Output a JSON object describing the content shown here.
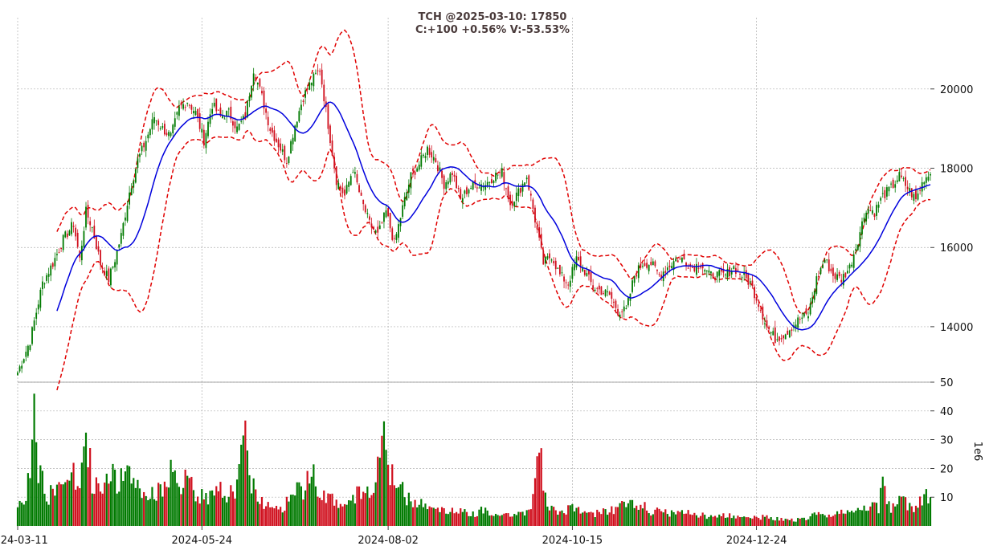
{
  "chart_data": {
    "type": "candlestick",
    "title_line1": "TCH @2025-03-10: 17850",
    "title_line2": "C:+100 +0.56% V:-53.53%",
    "date_ticks": [
      "2024-03-11",
      "2024-05-24",
      "2024-08-02",
      "2024-10-15",
      "2024-12-24"
    ],
    "price_axis": {
      "ticks": [
        14000,
        16000,
        18000,
        20000
      ],
      "range": [
        12600,
        21800
      ]
    },
    "volume_axis": {
      "label": "1e6",
      "ticks": [
        10,
        20,
        30,
        40,
        50
      ],
      "range": [
        0,
        50
      ]
    },
    "overlays": [
      "sma20",
      "bollinger_upper",
      "bollinger_lower"
    ],
    "colors": {
      "up": "#007a00",
      "down": "#d0101e",
      "ma": "#0000dd",
      "bands": "#e00000",
      "grid": "#b0b0b0"
    },
    "close_anchors": [
      [
        0,
        12850
      ],
      [
        6,
        13650
      ],
      [
        12,
        15100
      ],
      [
        17,
        15600
      ],
      [
        22,
        16200
      ],
      [
        27,
        16600
      ],
      [
        30,
        15700
      ],
      [
        33,
        16900
      ],
      [
        36,
        16500
      ],
      [
        40,
        15600
      ],
      [
        44,
        15200
      ],
      [
        47,
        15700
      ],
      [
        50,
        16300
      ],
      [
        54,
        17400
      ],
      [
        58,
        18200
      ],
      [
        62,
        18700
      ],
      [
        66,
        19300
      ],
      [
        70,
        19000
      ],
      [
        74,
        18800
      ],
      [
        78,
        19500
      ],
      [
        82,
        19700
      ],
      [
        86,
        19400
      ],
      [
        90,
        18700
      ],
      [
        94,
        19600
      ],
      [
        98,
        19300
      ],
      [
        102,
        19400
      ],
      [
        106,
        19000
      ],
      [
        110,
        19300
      ],
      [
        114,
        20500
      ],
      [
        118,
        19800
      ],
      [
        122,
        19000
      ],
      [
        126,
        18600
      ],
      [
        130,
        18200
      ],
      [
        134,
        19100
      ],
      [
        138,
        19800
      ],
      [
        142,
        20200
      ],
      [
        146,
        20500
      ],
      [
        150,
        19100
      ],
      [
        154,
        17700
      ],
      [
        158,
        17300
      ],
      [
        162,
        18000
      ],
      [
        166,
        17200
      ],
      [
        170,
        16600
      ],
      [
        174,
        16300
      ],
      [
        178,
        16900
      ],
      [
        182,
        16100
      ],
      [
        186,
        17000
      ],
      [
        190,
        17800
      ],
      [
        194,
        18100
      ],
      [
        198,
        18500
      ],
      [
        202,
        18200
      ],
      [
        206,
        17600
      ],
      [
        210,
        17900
      ],
      [
        214,
        17200
      ],
      [
        218,
        17500
      ],
      [
        222,
        17600
      ],
      [
        226,
        17600
      ],
      [
        230,
        17800
      ],
      [
        234,
        17900
      ],
      [
        238,
        17100
      ],
      [
        242,
        17400
      ],
      [
        246,
        17800
      ],
      [
        250,
        16700
      ],
      [
        254,
        15600
      ],
      [
        258,
        15800
      ],
      [
        262,
        15300
      ],
      [
        266,
        15100
      ],
      [
        270,
        15700
      ],
      [
        274,
        15400
      ],
      [
        278,
        15000
      ],
      [
        282,
        14900
      ],
      [
        286,
        14800
      ],
      [
        290,
        14400
      ],
      [
        294,
        14400
      ],
      [
        298,
        15300
      ],
      [
        302,
        15600
      ],
      [
        306,
        15600
      ],
      [
        310,
        15300
      ],
      [
        314,
        15500
      ],
      [
        318,
        15700
      ],
      [
        322,
        15700
      ],
      [
        326,
        15500
      ],
      [
        330,
        15600
      ],
      [
        334,
        15300
      ],
      [
        338,
        15300
      ],
      [
        342,
        15300
      ],
      [
        346,
        15500
      ],
      [
        350,
        15300
      ],
      [
        354,
        15100
      ],
      [
        358,
        14600
      ],
      [
        362,
        14000
      ],
      [
        366,
        13700
      ],
      [
        370,
        13800
      ],
      [
        374,
        14000
      ],
      [
        378,
        14200
      ],
      [
        382,
        14300
      ],
      [
        386,
        15200
      ],
      [
        390,
        15700
      ],
      [
        394,
        15300
      ],
      [
        398,
        15200
      ],
      [
        402,
        15500
      ],
      [
        406,
        16200
      ],
      [
        410,
        17000
      ],
      [
        414,
        16900
      ],
      [
        418,
        17300
      ],
      [
        422,
        17500
      ],
      [
        426,
        17800
      ],
      [
        430,
        17500
      ],
      [
        434,
        17200
      ],
      [
        438,
        17750
      ],
      [
        441,
        17850
      ]
    ],
    "volume_anchors": [
      [
        0,
        5
      ],
      [
        6,
        16
      ],
      [
        8,
        45
      ],
      [
        10,
        21
      ],
      [
        14,
        10
      ],
      [
        20,
        13
      ],
      [
        24,
        21
      ],
      [
        28,
        16
      ],
      [
        30,
        12
      ],
      [
        32,
        24
      ],
      [
        34,
        29
      ],
      [
        36,
        13
      ],
      [
        40,
        15
      ],
      [
        44,
        19
      ],
      [
        48,
        15
      ],
      [
        52,
        17
      ],
      [
        56,
        16
      ],
      [
        60,
        12
      ],
      [
        64,
        10
      ],
      [
        68,
        13
      ],
      [
        70,
        14
      ],
      [
        74,
        18
      ],
      [
        78,
        12
      ],
      [
        82,
        17
      ],
      [
        86,
        10
      ],
      [
        90,
        11
      ],
      [
        94,
        10
      ],
      [
        98,
        12
      ],
      [
        102,
        11
      ],
      [
        106,
        14
      ],
      [
        110,
        32
      ],
      [
        112,
        18
      ],
      [
        116,
        10
      ],
      [
        120,
        7
      ],
      [
        124,
        8
      ],
      [
        128,
        6
      ],
      [
        132,
        12
      ],
      [
        134,
        13
      ],
      [
        138,
        11
      ],
      [
        142,
        22
      ],
      [
        146,
        12
      ],
      [
        150,
        11
      ],
      [
        154,
        8
      ],
      [
        158,
        6
      ],
      [
        162,
        9
      ],
      [
        164,
        11
      ],
      [
        168,
        12
      ],
      [
        172,
        14
      ],
      [
        174,
        21
      ],
      [
        178,
        33
      ],
      [
        180,
        18
      ],
      [
        184,
        14
      ],
      [
        188,
        10
      ],
      [
        192,
        9
      ],
      [
        196,
        8
      ],
      [
        200,
        7
      ],
      [
        204,
        6
      ],
      [
        210,
        5
      ],
      [
        216,
        5
      ],
      [
        220,
        4
      ],
      [
        226,
        6
      ],
      [
        230,
        4
      ],
      [
        234,
        5
      ],
      [
        238,
        4
      ],
      [
        242,
        4
      ],
      [
        248,
        5
      ],
      [
        252,
        34
      ],
      [
        254,
        12
      ],
      [
        258,
        6
      ],
      [
        262,
        5
      ],
      [
        268,
        6
      ],
      [
        272,
        5
      ],
      [
        278,
        4
      ],
      [
        284,
        5
      ],
      [
        290,
        6
      ],
      [
        294,
        8
      ],
      [
        298,
        8
      ],
      [
        302,
        7
      ],
      [
        306,
        5
      ],
      [
        312,
        5
      ],
      [
        318,
        4
      ],
      [
        322,
        6
      ],
      [
        326,
        4
      ],
      [
        330,
        4
      ],
      [
        336,
        3
      ],
      [
        342,
        4
      ],
      [
        348,
        3
      ],
      [
        354,
        3
      ],
      [
        358,
        3
      ],
      [
        364,
        3
      ],
      [
        370,
        2
      ],
      [
        376,
        2
      ],
      [
        382,
        3
      ],
      [
        386,
        4
      ],
      [
        390,
        3
      ],
      [
        396,
        4
      ],
      [
        402,
        5
      ],
      [
        408,
        5
      ],
      [
        412,
        7
      ],
      [
        416,
        6
      ],
      [
        418,
        20
      ],
      [
        420,
        7
      ],
      [
        424,
        6
      ],
      [
        426,
        14
      ],
      [
        430,
        7
      ],
      [
        434,
        6
      ],
      [
        438,
        11
      ],
      [
        441,
        8
      ]
    ]
  }
}
